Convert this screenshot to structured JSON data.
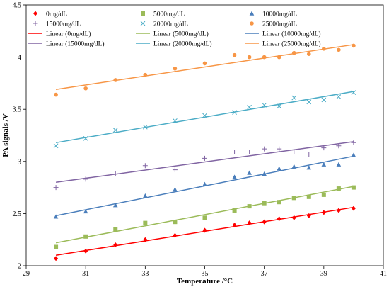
{
  "chart_data": {
    "type": "scatter",
    "xlabel": "Temperature /°C",
    "ylabel": "PA signals /V",
    "xlim": [
      29,
      41
    ],
    "ylim": [
      2,
      4.5
    ],
    "xticks": [
      "29",
      "31",
      "33",
      "35",
      "37",
      "39",
      "41"
    ],
    "yticks": [
      "2",
      "2.5",
      "3",
      "3.5",
      "4",
      "4.5"
    ],
    "grid": false,
    "legend_position": "top",
    "series": [
      {
        "name": "0mg/dL",
        "marker": "diamond",
        "color": "#ff0000",
        "x": [
          30,
          31,
          32,
          33,
          34,
          35,
          36,
          36.5,
          37,
          37.5,
          38,
          38.5,
          39,
          39.5,
          40
        ],
        "y": [
          2.07,
          2.14,
          2.2,
          2.25,
          2.29,
          2.34,
          2.39,
          2.41,
          2.42,
          2.45,
          2.46,
          2.48,
          2.51,
          2.53,
          2.55
        ]
      },
      {
        "name": "5000mg/dL",
        "marker": "square",
        "color": "#9bbb59",
        "x": [
          30,
          31,
          32,
          33,
          34,
          35,
          36,
          36.5,
          37,
          37.5,
          38,
          38.5,
          39,
          39.5,
          40
        ],
        "y": [
          2.18,
          2.28,
          2.35,
          2.41,
          2.42,
          2.46,
          2.53,
          2.57,
          2.6,
          2.61,
          2.65,
          2.66,
          2.68,
          2.74,
          2.75
        ]
      },
      {
        "name": "10000mg/dL",
        "marker": "triangle",
        "color": "#4a7ebb",
        "x": [
          30,
          31,
          32,
          33,
          34,
          35,
          36,
          36.5,
          37,
          37.5,
          38,
          38.5,
          39,
          39.5,
          40
        ],
        "y": [
          2.47,
          2.52,
          2.58,
          2.67,
          2.73,
          2.78,
          2.85,
          2.89,
          2.88,
          2.93,
          2.95,
          2.94,
          2.97,
          2.97,
          3.06
        ]
      },
      {
        "name": "15000mg/dL",
        "marker": "plus",
        "color": "#8064a2",
        "x": [
          30,
          31,
          32,
          33,
          34,
          35,
          36,
          36.5,
          37,
          37.5,
          38,
          38.5,
          39,
          39.5,
          40
        ],
        "y": [
          2.75,
          2.83,
          2.88,
          2.96,
          2.92,
          3.03,
          3.09,
          3.09,
          3.12,
          3.12,
          3.09,
          3.07,
          3.13,
          3.15,
          3.18
        ]
      },
      {
        "name": "20000mg/dL",
        "marker": "x",
        "color": "#4bacc6",
        "x": [
          30,
          31,
          32,
          33,
          34,
          35,
          36,
          36.5,
          37,
          37.5,
          38,
          38.5,
          39,
          39.5,
          40
        ],
        "y": [
          3.15,
          3.22,
          3.3,
          3.33,
          3.39,
          3.44,
          3.47,
          3.52,
          3.54,
          3.53,
          3.61,
          3.57,
          3.59,
          3.62,
          3.66
        ]
      },
      {
        "name": "25000mg/dL",
        "marker": "circle",
        "color": "#f79646",
        "x": [
          30,
          31,
          32,
          33,
          34,
          35,
          36,
          36.5,
          37,
          37.5,
          38,
          38.5,
          39,
          39.5,
          40
        ],
        "y": [
          3.64,
          3.7,
          3.78,
          3.83,
          3.89,
          3.94,
          4.02,
          4.0,
          4.0,
          4.0,
          4.04,
          4.03,
          4.08,
          4.07,
          4.11
        ]
      }
    ],
    "trendlines": [
      {
        "name": "Linear (0mg/dL)",
        "color": "#ff0000",
        "x": [
          30,
          40
        ],
        "y": [
          2.1,
          2.56
        ]
      },
      {
        "name": "Linear (5000mg/dL)",
        "color": "#9bbb59",
        "x": [
          30,
          40
        ],
        "y": [
          2.22,
          2.76
        ]
      },
      {
        "name": "Linear (10000mg/dL)",
        "color": "#4a7ebb",
        "x": [
          30,
          40
        ],
        "y": [
          2.48,
          3.05
        ]
      },
      {
        "name": "Linear (15000mg/dL)",
        "color": "#8064a2",
        "x": [
          30,
          40
        ],
        "y": [
          2.8,
          3.19
        ]
      },
      {
        "name": "Linear (20000mg/dL)",
        "color": "#4bacc6",
        "x": [
          30,
          40
        ],
        "y": [
          3.18,
          3.67
        ]
      },
      {
        "name": "Linear (25000mg/dL)",
        "color": "#f79646",
        "x": [
          30,
          40
        ],
        "y": [
          3.69,
          4.12
        ]
      }
    ]
  }
}
